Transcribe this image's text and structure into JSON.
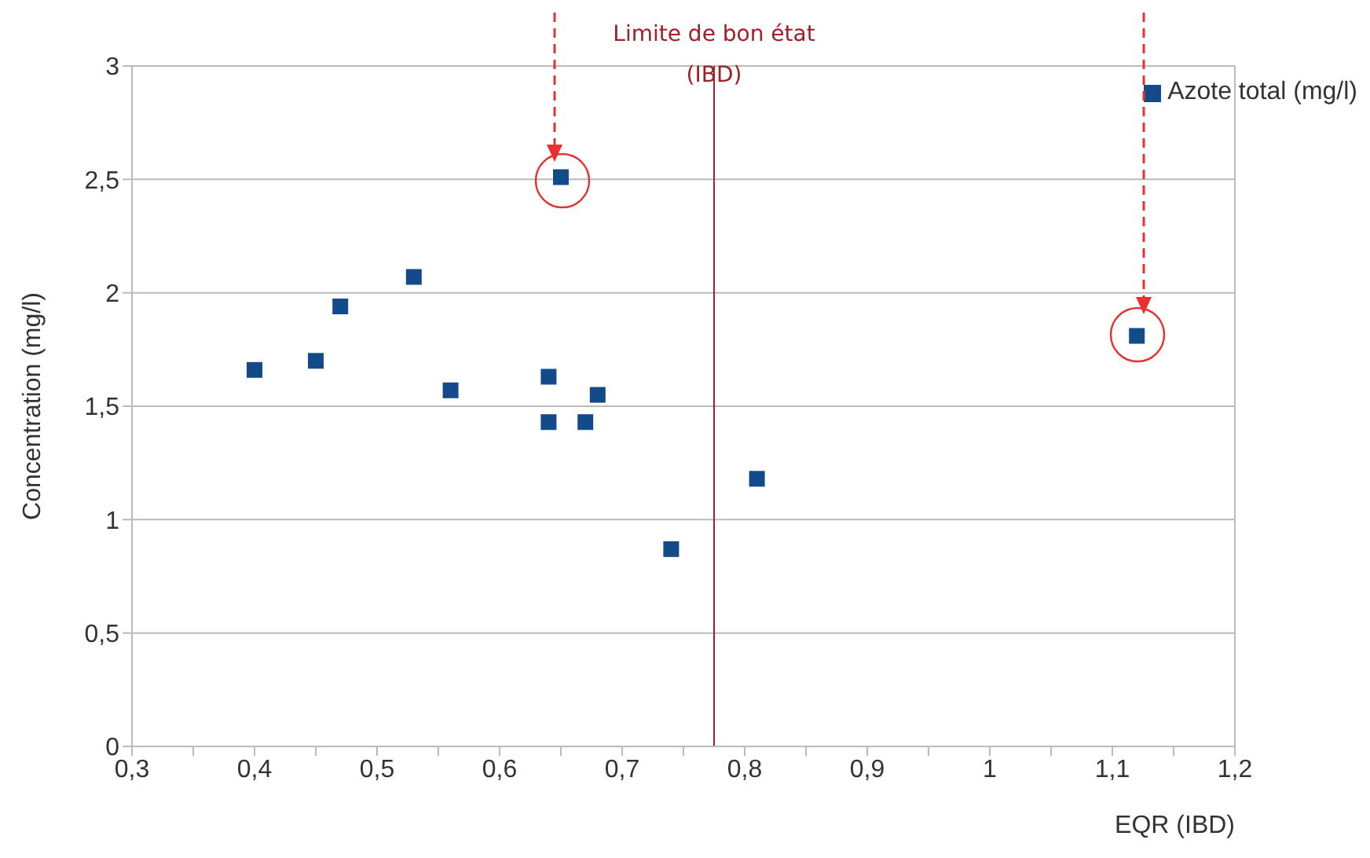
{
  "chart_data": {
    "type": "scatter",
    "xlabel": "EQR (IBD)",
    "ylabel": "Concentration (mg/l)",
    "series": [
      {
        "name": "Azote total (mg/l)",
        "color": "#134a8a",
        "x": [
          0.4,
          0.45,
          0.47,
          0.53,
          0.56,
          0.65,
          0.64,
          0.64,
          0.67,
          0.68,
          0.74,
          0.81,
          1.12
        ],
        "values": [
          1.66,
          1.7,
          1.94,
          2.07,
          1.57,
          2.51,
          1.63,
          1.43,
          1.43,
          1.55,
          0.87,
          1.18,
          1.81
        ]
      }
    ],
    "xlim": [
      0.3,
      1.2
    ],
    "xticks": [
      {
        "value": 0.3,
        "label": "0,3"
      },
      {
        "value": 0.35,
        "label": null
      },
      {
        "value": 0.4,
        "label": "0,4"
      },
      {
        "value": 0.45,
        "label": null
      },
      {
        "value": 0.5,
        "label": "0,5"
      },
      {
        "value": 0.55,
        "label": null
      },
      {
        "value": 0.6,
        "label": "0,6"
      },
      {
        "value": 0.65,
        "label": null
      },
      {
        "value": 0.7,
        "label": "0,7"
      },
      {
        "value": 0.75,
        "label": null
      },
      {
        "value": 0.8,
        "label": "0,8"
      },
      {
        "value": 0.85,
        "label": null
      },
      {
        "value": 0.9,
        "label": "0,9"
      },
      {
        "value": 0.95,
        "label": null
      },
      {
        "value": 1,
        "label": "1"
      },
      {
        "value": 1.05,
        "label": null
      },
      {
        "value": 1.1,
        "label": "1,1"
      },
      {
        "value": 1.15,
        "label": null
      },
      {
        "value": 1.2,
        "label": "1,2"
      }
    ],
    "ylim": [
      0,
      3
    ],
    "yticks": [
      0,
      {
        "value": 0.5,
        "label": "0,5"
      },
      1,
      {
        "value": 1.5,
        "label": "1,5"
      },
      2,
      {
        "value": 2.5,
        "label": "2,5"
      },
      3
    ],
    "ref_lines": [
      {
        "axis": "x",
        "value": 0.775,
        "label": "Limite de bon état (IBD)",
        "color": "#a0202a"
      }
    ],
    "grid": "y",
    "legend": "top right",
    "marker": "square"
  }
}
